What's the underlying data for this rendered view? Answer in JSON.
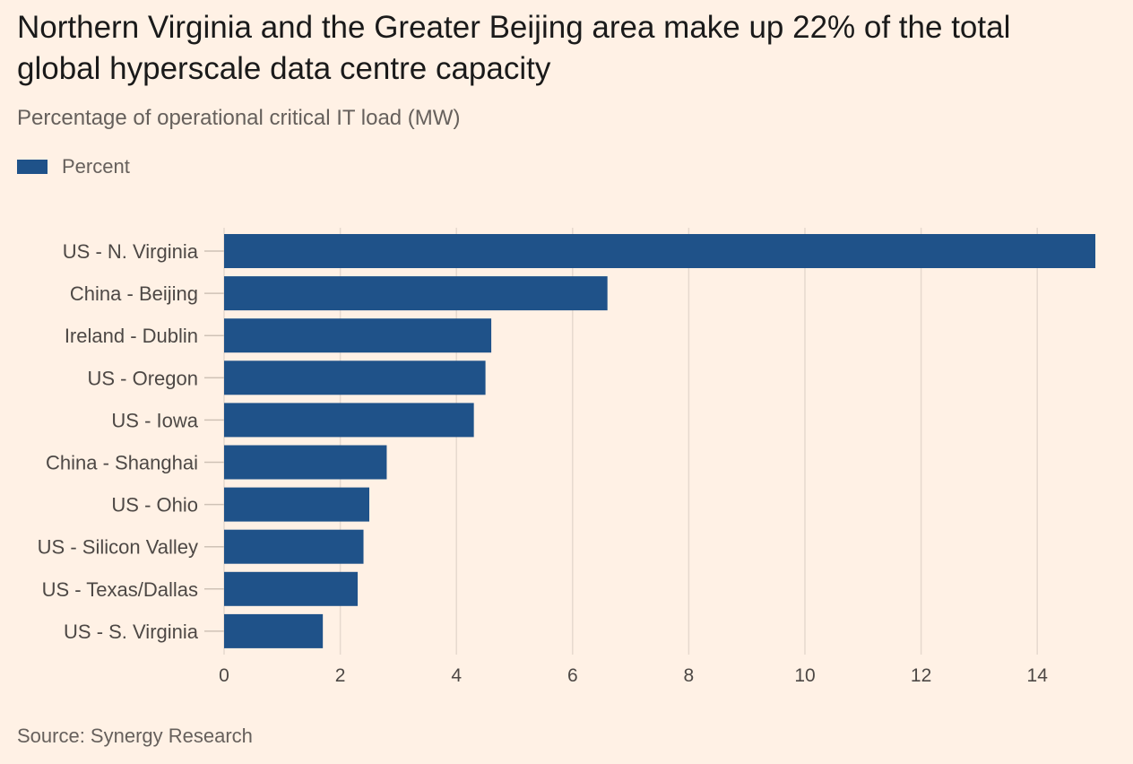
{
  "title": "Northern Virginia and the Greater Beijing area make up 22% of the total global hyperscale data centre capacity",
  "subtitle": "Percentage of operational critical IT load (MW)",
  "source": "Source: Synergy Research",
  "colors": {
    "bar": "#1f5289",
    "background": "#fff1e5",
    "grid": "#e6d9ce"
  },
  "chart_data": {
    "type": "bar",
    "orientation": "horizontal",
    "title": "Northern Virginia and the Greater Beijing area make up 22% of the total global hyperscale data centre capacity",
    "subtitle": "Percentage of operational critical IT load (MW)",
    "categories": [
      "US - N. Virginia",
      "China - Beijing",
      "Ireland - Dublin",
      "US - Oregon",
      "US - Iowa",
      "China - Shanghai",
      "US - Ohio",
      "US - Silicon Valley",
      "US - Texas/Dallas",
      "US - S. Virginia"
    ],
    "series": [
      {
        "name": "Percent",
        "values": [
          15.0,
          6.6,
          4.6,
          4.5,
          4.3,
          2.8,
          2.5,
          2.4,
          2.3,
          1.7
        ]
      }
    ],
    "xlim": [
      0,
      15
    ],
    "xticks": [
      0,
      2,
      4,
      6,
      8,
      10,
      12,
      14
    ],
    "grid": true,
    "legend": "top-left"
  }
}
